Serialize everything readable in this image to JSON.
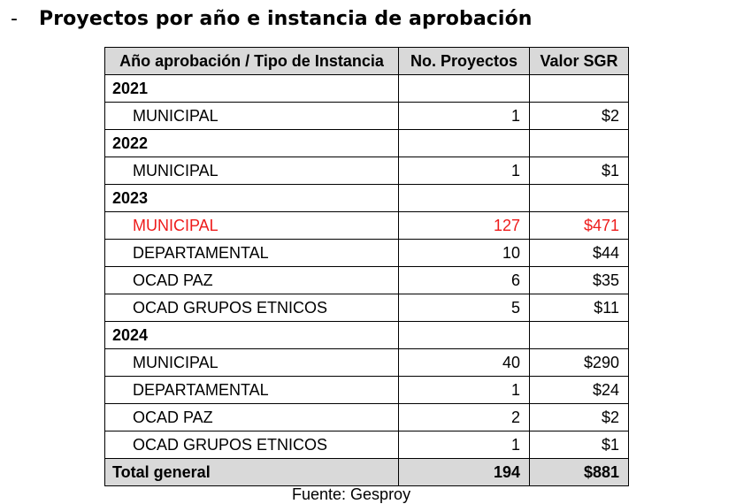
{
  "heading": {
    "bullet": "-",
    "title": "Proyectos por año e instancia de aprobación"
  },
  "table": {
    "headers": [
      "Año aprobación / Tipo de Instancia",
      "No. Proyectos",
      "Valor SGR"
    ],
    "rows": [
      {
        "type": "year",
        "label": "2021",
        "proyectos": "",
        "valor": ""
      },
      {
        "type": "item",
        "label": "MUNICIPAL",
        "proyectos": "1",
        "valor": "$2"
      },
      {
        "type": "year",
        "label": "2022",
        "proyectos": "",
        "valor": ""
      },
      {
        "type": "item",
        "label": "MUNICIPAL",
        "proyectos": "1",
        "valor": "$1"
      },
      {
        "type": "year",
        "label": "2023",
        "proyectos": "",
        "valor": ""
      },
      {
        "type": "item",
        "label": "MUNICIPAL",
        "proyectos": "127",
        "valor": "$471",
        "highlight": true
      },
      {
        "type": "item",
        "label": "DEPARTAMENTAL",
        "proyectos": "10",
        "valor": "$44"
      },
      {
        "type": "item",
        "label": "OCAD PAZ",
        "proyectos": "6",
        "valor": "$35"
      },
      {
        "type": "item",
        "label": "OCAD GRUPOS ETNICOS",
        "proyectos": "5",
        "valor": "$11"
      },
      {
        "type": "year",
        "label": "2024",
        "proyectos": "",
        "valor": ""
      },
      {
        "type": "item",
        "label": "MUNICIPAL",
        "proyectos": "40",
        "valor": "$290"
      },
      {
        "type": "item",
        "label": "DEPARTAMENTAL",
        "proyectos": "1",
        "valor": "$24"
      },
      {
        "type": "item",
        "label": "OCAD PAZ",
        "proyectos": "2",
        "valor": "$2"
      },
      {
        "type": "item",
        "label": "OCAD GRUPOS ETNICOS",
        "proyectos": "1",
        "valor": "$1"
      }
    ],
    "total": {
      "label": "Total general",
      "proyectos": "194",
      "valor": "$881"
    }
  },
  "caption": "Fuente: Gesproy",
  "colors": {
    "header_background": "#d9d9d9",
    "highlight_text": "#ee1c1c"
  }
}
